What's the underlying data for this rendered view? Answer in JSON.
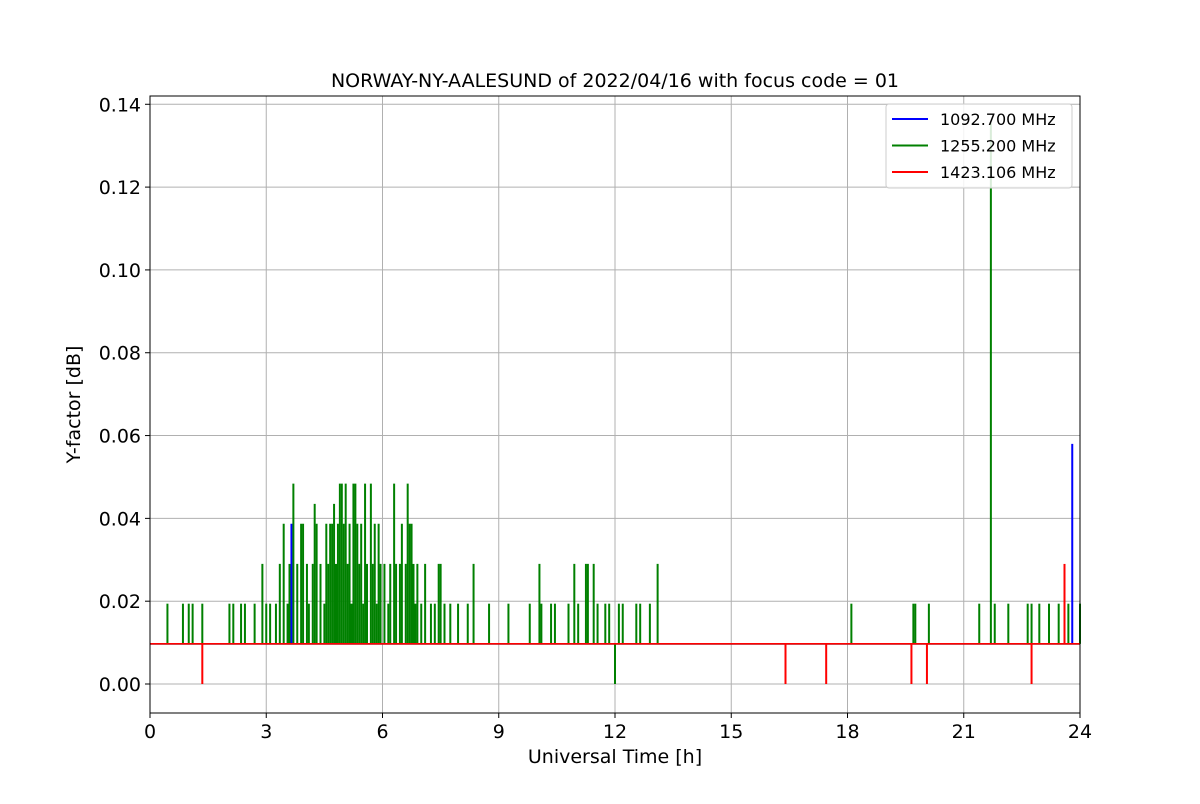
{
  "chart_data": {
    "type": "line",
    "title": "NORWAY-NY-AALESUND of 2022/04/16 with focus code = 01",
    "xlabel": "Universal Time [h]",
    "ylabel": "Y-factor [dB]",
    "xlim": [
      0,
      24
    ],
    "ylim": [
      -0.007,
      0.142
    ],
    "xticks": [
      0,
      3,
      6,
      9,
      12,
      15,
      18,
      21,
      24
    ],
    "xtick_labels": [
      "0",
      "3",
      "6",
      "9",
      "12",
      "15",
      "18",
      "21",
      "24"
    ],
    "yticks": [
      0,
      0.02,
      0.04,
      0.06,
      0.08,
      0.1,
      0.12,
      0.14
    ],
    "ytick_labels": [
      "0.00",
      "0.02",
      "0.04",
      "0.06",
      "0.08",
      "0.10",
      "0.12",
      "0.14"
    ],
    "grid": true,
    "legend": "top-right",
    "baseline": 0.0097,
    "series": [
      {
        "name": "1092.700 MHz",
        "color": "#0000ff",
        "spikes": [
          [
            3.65,
            0.0387
          ],
          [
            23.8,
            0.058
          ]
        ]
      },
      {
        "name": "1255.200 MHz",
        "color": "#008000",
        "spikes": [
          [
            0.45,
            0.0194
          ],
          [
            0.85,
            0.0194
          ],
          [
            1.0,
            0.0194
          ],
          [
            1.1,
            0.0194
          ],
          [
            1.35,
            0.0194
          ],
          [
            2.05,
            0.0194
          ],
          [
            2.15,
            0.0194
          ],
          [
            2.35,
            0.0194
          ],
          [
            2.45,
            0.0194
          ],
          [
            2.7,
            0.0194
          ],
          [
            2.9,
            0.029
          ],
          [
            3.0,
            0.0194
          ],
          [
            3.1,
            0.0194
          ],
          [
            3.25,
            0.0194
          ],
          [
            3.35,
            0.029
          ],
          [
            3.45,
            0.0387
          ],
          [
            3.55,
            0.0194
          ],
          [
            3.6,
            0.029
          ],
          [
            3.7,
            0.0484
          ],
          [
            3.8,
            0.029
          ],
          [
            3.9,
            0.0387
          ],
          [
            3.95,
            0.0387
          ],
          [
            4.05,
            0.029
          ],
          [
            4.1,
            0.0194
          ],
          [
            4.2,
            0.029
          ],
          [
            4.25,
            0.0435
          ],
          [
            4.3,
            0.0387
          ],
          [
            4.4,
            0.029
          ],
          [
            4.5,
            0.0194
          ],
          [
            4.55,
            0.0387
          ],
          [
            4.6,
            0.029
          ],
          [
            4.65,
            0.0387
          ],
          [
            4.7,
            0.0387
          ],
          [
            4.75,
            0.0435
          ],
          [
            4.8,
            0.029
          ],
          [
            4.85,
            0.0387
          ],
          [
            4.9,
            0.0484
          ],
          [
            4.95,
            0.0484
          ],
          [
            5.0,
            0.0387
          ],
          [
            5.05,
            0.0484
          ],
          [
            5.1,
            0.029
          ],
          [
            5.15,
            0.0387
          ],
          [
            5.2,
            0.0194
          ],
          [
            5.25,
            0.0484
          ],
          [
            5.3,
            0.0484
          ],
          [
            5.35,
            0.0387
          ],
          [
            5.4,
            0.029
          ],
          [
            5.45,
            0.0387
          ],
          [
            5.5,
            0.0194
          ],
          [
            5.55,
            0.0484
          ],
          [
            5.6,
            0.029
          ],
          [
            5.7,
            0.0484
          ],
          [
            5.75,
            0.029
          ],
          [
            5.8,
            0.0387
          ],
          [
            5.85,
            0.0194
          ],
          [
            5.9,
            0.0387
          ],
          [
            5.95,
            0.029
          ],
          [
            6.05,
            0.029
          ],
          [
            6.15,
            0.0194
          ],
          [
            6.2,
            0.029
          ],
          [
            6.3,
            0.0484
          ],
          [
            6.35,
            0.029
          ],
          [
            6.45,
            0.029
          ],
          [
            6.5,
            0.0387
          ],
          [
            6.6,
            0.029
          ],
          [
            6.65,
            0.0484
          ],
          [
            6.7,
            0.0387
          ],
          [
            6.75,
            0.0387
          ],
          [
            6.8,
            0.029
          ],
          [
            6.85,
            0.0194
          ],
          [
            6.9,
            0.029
          ],
          [
            7.0,
            0.0194
          ],
          [
            7.1,
            0.029
          ],
          [
            7.25,
            0.0194
          ],
          [
            7.35,
            0.0194
          ],
          [
            7.45,
            0.029
          ],
          [
            7.5,
            0.029
          ],
          [
            7.6,
            0.0194
          ],
          [
            7.75,
            0.0194
          ],
          [
            7.95,
            0.0194
          ],
          [
            8.2,
            0.0194
          ],
          [
            8.35,
            0.029
          ],
          [
            8.75,
            0.0194
          ],
          [
            9.25,
            0.0194
          ],
          [
            9.8,
            0.0194
          ],
          [
            10.05,
            0.029
          ],
          [
            10.1,
            0.0194
          ],
          [
            10.35,
            0.0194
          ],
          [
            10.45,
            0.0194
          ],
          [
            10.8,
            0.0194
          ],
          [
            10.95,
            0.029
          ],
          [
            11.05,
            0.0194
          ],
          [
            11.25,
            0.029
          ],
          [
            11.3,
            0.029
          ],
          [
            11.45,
            0.029
          ],
          [
            11.55,
            0.0194
          ],
          [
            11.75,
            0.0194
          ],
          [
            11.85,
            0.0194
          ],
          [
            12.0,
            0.0
          ],
          [
            12.1,
            0.0194
          ],
          [
            12.2,
            0.0194
          ],
          [
            12.55,
            0.0194
          ],
          [
            12.65,
            0.0194
          ],
          [
            12.9,
            0.0194
          ],
          [
            13.1,
            0.029
          ],
          [
            18.1,
            0.0194
          ],
          [
            19.7,
            0.0194
          ],
          [
            19.75,
            0.0194
          ],
          [
            20.1,
            0.0194
          ],
          [
            21.4,
            0.0194
          ],
          [
            21.7,
            0.1355
          ],
          [
            21.8,
            0.0194
          ],
          [
            22.15,
            0.0194
          ],
          [
            22.65,
            0.0194
          ],
          [
            22.75,
            0.0194
          ],
          [
            22.95,
            0.0194
          ],
          [
            23.2,
            0.0194
          ],
          [
            23.45,
            0.0194
          ],
          [
            23.7,
            0.0194
          ],
          [
            24.0,
            0.0194
          ]
        ]
      },
      {
        "name": "1423.106 MHz",
        "color": "#ff0000",
        "spikes": [
          [
            1.35,
            0.0
          ],
          [
            16.4,
            0.0
          ],
          [
            17.45,
            0.0
          ],
          [
            19.65,
            0.0
          ],
          [
            20.05,
            0.0
          ],
          [
            22.75,
            0.0
          ],
          [
            23.6,
            0.029
          ]
        ]
      }
    ]
  }
}
